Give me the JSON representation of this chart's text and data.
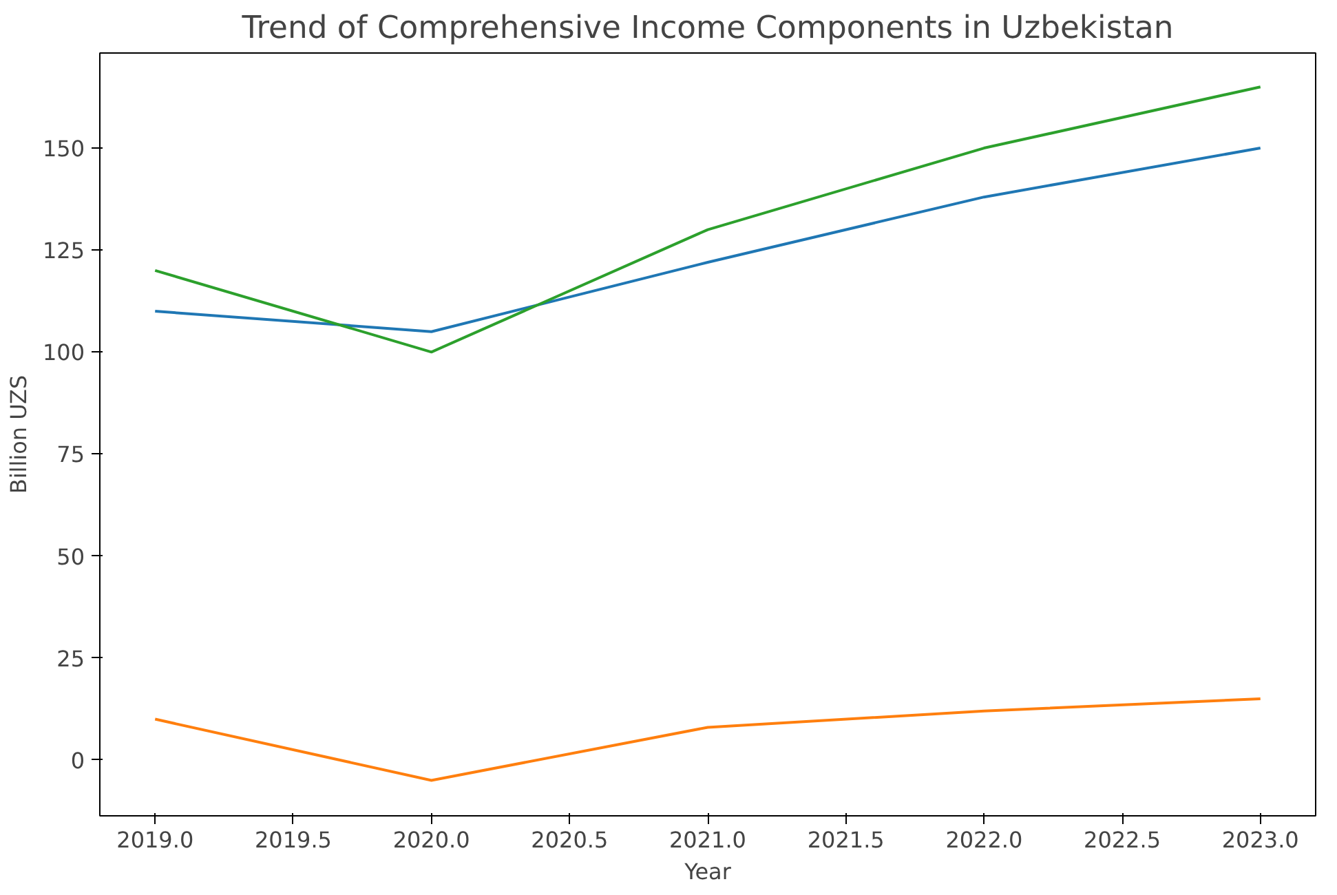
{
  "chart_data": {
    "type": "line",
    "title": "Trend of Comprehensive Income Components in Uzbekistan",
    "xlabel": "Year",
    "ylabel": "Billion UZS",
    "x": [
      2019,
      2020,
      2021,
      2022,
      2023
    ],
    "series": [
      {
        "color": "#1f77b4",
        "values": [
          110,
          105,
          122,
          138,
          150
        ]
      },
      {
        "color": "#ff7f0e",
        "values": [
          10,
          -5,
          8,
          12,
          15
        ]
      },
      {
        "color": "#2ca02c",
        "values": [
          120,
          100,
          130,
          150,
          165
        ]
      }
    ],
    "xlim": [
      2018.8,
      2023.2
    ],
    "ylim": [
      -13.7,
      173.3
    ],
    "xticks": [
      {
        "value": 2019,
        "label": "2019.0"
      },
      {
        "value": 2019.5,
        "label": "2019.5"
      },
      {
        "value": 2020,
        "label": "2020.0"
      },
      {
        "value": 2020.5,
        "label": "2020.5"
      },
      {
        "value": 2021,
        "label": "2021.0"
      },
      {
        "value": 2021.5,
        "label": "2021.5"
      },
      {
        "value": 2022,
        "label": "2022.0"
      },
      {
        "value": 2022.5,
        "label": "2022.5"
      },
      {
        "value": 2023,
        "label": "2023.0"
      }
    ],
    "yticks": [
      0,
      25,
      50,
      75,
      100,
      125,
      150
    ]
  }
}
